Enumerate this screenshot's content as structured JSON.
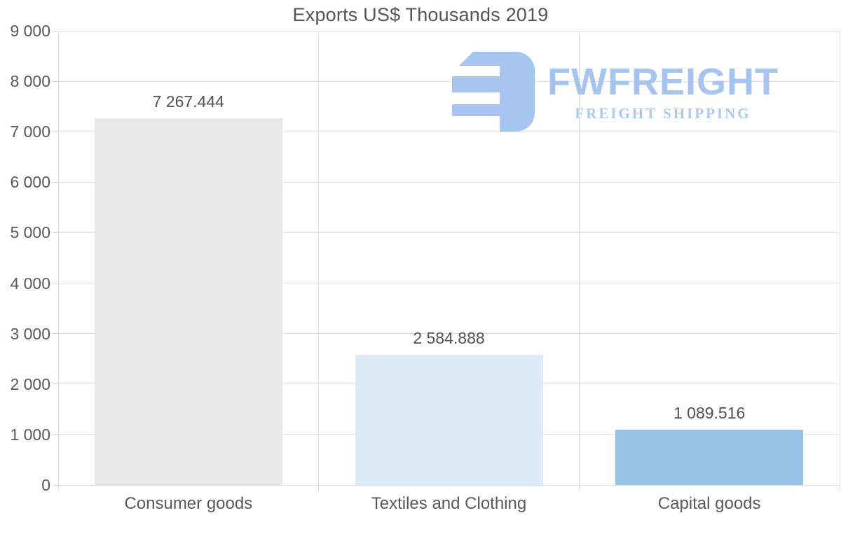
{
  "page": {
    "background": "#ffffff",
    "text_color": "#595959",
    "gridline_color": "#e2e2e2"
  },
  "logo": {
    "title": "FWFREIGHT",
    "subtitle": "FREIGHT SHIPPING",
    "color": "#a6c4f0",
    "icon": "fwfreight-f-mark"
  },
  "chart_data": {
    "type": "bar",
    "title": "Exports US$ Thousands 2019",
    "categories": [
      "Consumer goods",
      "Textiles and Clothing",
      "Capital goods"
    ],
    "values": [
      7267.444,
      2584.888,
      1089.516
    ],
    "value_labels": [
      "7 267.444",
      "2 584.888",
      "1 089.516"
    ],
    "bar_colors": [
      "#e8e8e8",
      "#dbe9f8",
      "#97c2e6"
    ],
    "xlabel": "",
    "ylabel": "",
    "ylim": [
      0,
      9000
    ],
    "ytick_step": 1000,
    "ytick_labels": [
      "0",
      "1 000",
      "2 000",
      "3 000",
      "4 000",
      "5 000",
      "6 000",
      "7 000",
      "8 000",
      "9 000"
    ],
    "grid": true,
    "legend": "none"
  }
}
